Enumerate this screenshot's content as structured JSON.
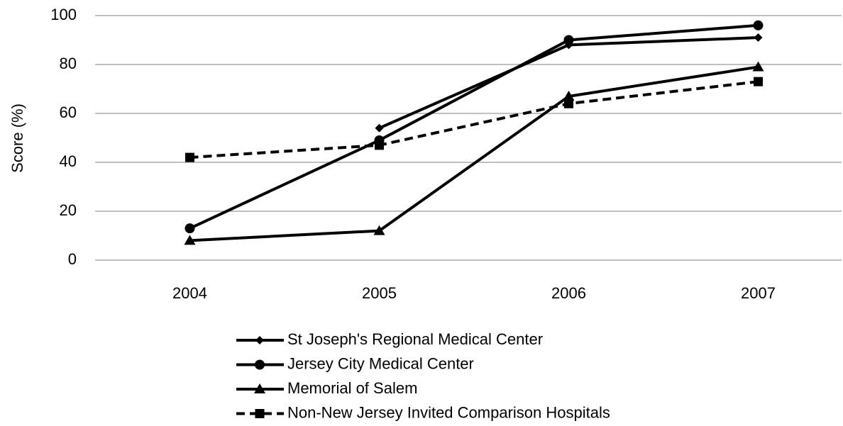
{
  "chart_data": {
    "type": "line",
    "y_label": "Score (%)",
    "categories": [
      "2004",
      "2005",
      "2006",
      "2007"
    ],
    "series": [
      {
        "name": "St Joseph's Regional Medical Center",
        "color": "#000000",
        "marker": "diamond",
        "dashed": false,
        "values": [
          null,
          54,
          88,
          91
        ]
      },
      {
        "name": "Jersey City Medical Center",
        "color": "#000000",
        "marker": "circle",
        "dashed": false,
        "values": [
          13,
          49,
          90,
          96
        ]
      },
      {
        "name": "Memorial of Salem",
        "color": "#000000",
        "marker": "triangle",
        "dashed": false,
        "values": [
          8,
          12,
          67,
          79
        ]
      },
      {
        "name": "Non-New Jersey Invited Comparison Hospitals",
        "color": "#000000",
        "marker": "square",
        "dashed": true,
        "values": [
          42,
          47,
          64,
          73
        ]
      }
    ],
    "ylim": [
      0,
      100
    ],
    "yticks": [
      0,
      20,
      40,
      60,
      80,
      100
    ],
    "grid": true,
    "legend": "bottom"
  }
}
